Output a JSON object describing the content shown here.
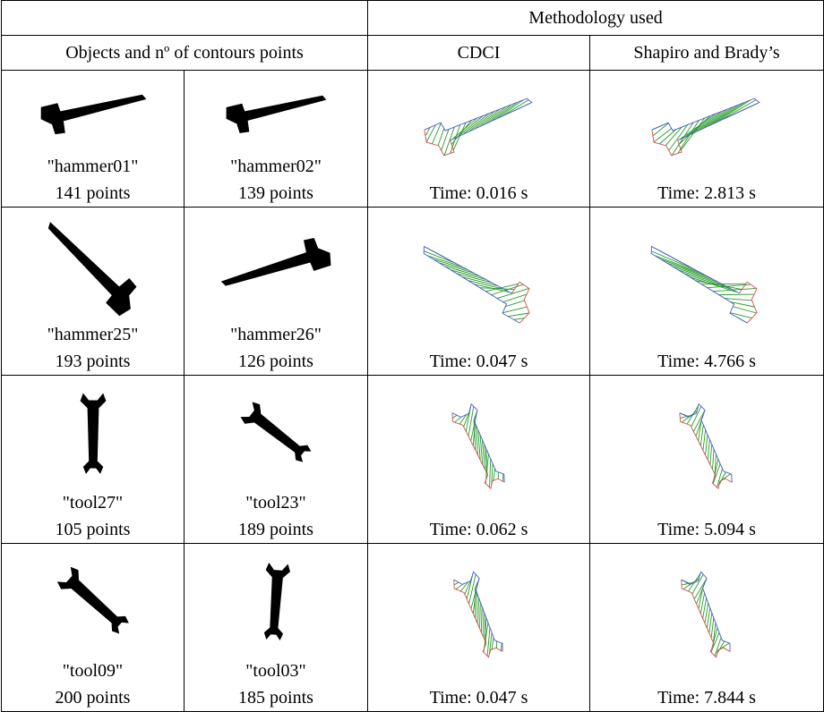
{
  "header": {
    "group_title": "Methodology used",
    "objects_title": "Objects and nº of contours points",
    "methods": [
      "CDCI",
      "Shapiro and Brady’s"
    ]
  },
  "rows": [
    {
      "objects": [
        {
          "name": "\"hammer01\"",
          "points": "141 points"
        },
        {
          "name": "\"hammer02\"",
          "points": "139 points"
        }
      ],
      "times": [
        "Time: 0.016 s",
        "Time: 2.813 s"
      ]
    },
    {
      "objects": [
        {
          "name": "\"hammer25\"",
          "points": "193 points"
        },
        {
          "name": "\"hammer26\"",
          "points": "126 points"
        }
      ],
      "times": [
        "Time: 0.047 s",
        "Time: 4.766 s"
      ]
    },
    {
      "objects": [
        {
          "name": "\"tool27\"",
          "points": "105 points"
        },
        {
          "name": "\"tool23\"",
          "points": "189 points"
        }
      ],
      "times": [
        "Time: 0.062 s",
        "Time: 5.094 s"
      ]
    },
    {
      "objects": [
        {
          "name": "\"tool09\"",
          "points": "200 points"
        },
        {
          "name": "\"tool03\"",
          "points": "185 points"
        }
      ],
      "times": [
        "Time: 0.047 s",
        "Time: 7.844 s"
      ]
    }
  ]
}
